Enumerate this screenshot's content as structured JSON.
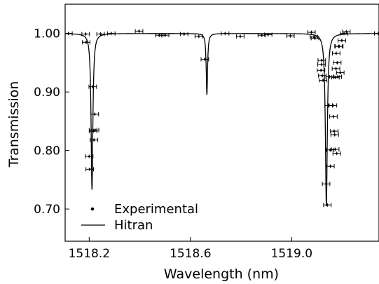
{
  "chart_data": {
    "type": "scatter",
    "xlabel": "Wavelength (nm)",
    "ylabel": "Transmission",
    "xlim": [
      1518.105,
      1519.345
    ],
    "ylim": [
      0.645,
      1.05
    ],
    "x_ticks": [
      1518.2,
      1518.6,
      1519.0
    ],
    "x_tick_labels": [
      "1518.2",
      "1518.6",
      "1519.0"
    ],
    "y_ticks": [
      0.7,
      0.8,
      0.9,
      1.0
    ],
    "y_tick_labels": [
      "0.70",
      "0.80",
      "0.90",
      "1.00"
    ],
    "grid": false,
    "legend": {
      "position": "bottom-left",
      "entries": [
        "Experimental",
        "Hitran"
      ]
    },
    "series": [
      {
        "name": "Experimental",
        "style": "points-with-xy-errorbars",
        "x_error": 0.015,
        "y_error": 0.003,
        "points": [
          [
            1518.118,
            1.0
          ],
          [
            1518.186,
            0.999
          ],
          [
            1518.188,
            0.985
          ],
          [
            1518.245,
            0.999
          ],
          [
            1518.287,
            1.0
          ],
          [
            1518.397,
            1.004
          ],
          [
            1518.477,
            0.997
          ],
          [
            1518.5,
            0.997
          ],
          [
            1518.575,
            0.999
          ],
          [
            1518.633,
            0.995
          ],
          [
            1518.657,
            0.956
          ],
          [
            1518.737,
            1.0
          ],
          [
            1518.797,
            0.995
          ],
          [
            1518.882,
            0.997
          ],
          [
            1518.907,
            0.998
          ],
          [
            1518.995,
            0.996
          ],
          [
            1519.078,
            1.002
          ],
          [
            1519.088,
            0.994
          ],
          [
            1519.092,
            0.992
          ],
          [
            1519.116,
            0.937
          ],
          [
            1519.118,
            0.947
          ],
          [
            1519.119,
            0.954
          ],
          [
            1519.121,
            0.928
          ],
          [
            1519.124,
            0.92
          ],
          [
            1519.136,
            0.743
          ],
          [
            1519.141,
            0.707
          ],
          [
            1519.146,
            0.877
          ],
          [
            1519.15,
            0.926
          ],
          [
            1519.152,
            0.801
          ],
          [
            1519.153,
            0.773
          ],
          [
            1519.163,
            0.877
          ],
          [
            1519.165,
            0.858
          ],
          [
            1519.168,
            0.833
          ],
          [
            1519.17,
            0.827
          ],
          [
            1519.172,
            0.802
          ],
          [
            1519.173,
            0.925
          ],
          [
            1519.175,
            0.94
          ],
          [
            1519.176,
            0.966
          ],
          [
            1519.178,
            0.795
          ],
          [
            1519.18,
            0.95
          ],
          [
            1519.182,
            0.926
          ],
          [
            1519.185,
            0.978
          ],
          [
            1519.188,
            0.978
          ],
          [
            1519.192,
            0.933
          ],
          [
            1519.198,
            0.988
          ],
          [
            1519.207,
            1.0
          ],
          [
            1519.216,
            1.003
          ],
          [
            1519.342,
            1.0
          ],
          [
            1518.2,
            0.79
          ],
          [
            1518.202,
            0.768
          ],
          [
            1518.214,
            0.909
          ],
          [
            1518.215,
            0.835
          ],
          [
            1518.216,
            0.833
          ],
          [
            1518.219,
            0.818
          ],
          [
            1518.222,
            0.862
          ],
          [
            1518.223,
            0.835
          ]
        ]
      },
      {
        "name": "Hitran",
        "style": "line",
        "lines": [
          {
            "center": 1518.211,
            "depth": 0.267,
            "width": 0.0042
          },
          {
            "center": 1518.665,
            "depth": 0.105,
            "width": 0.0032
          },
          {
            "center": 1519.137,
            "depth": 0.295,
            "width": 0.0046
          }
        ]
      }
    ]
  }
}
